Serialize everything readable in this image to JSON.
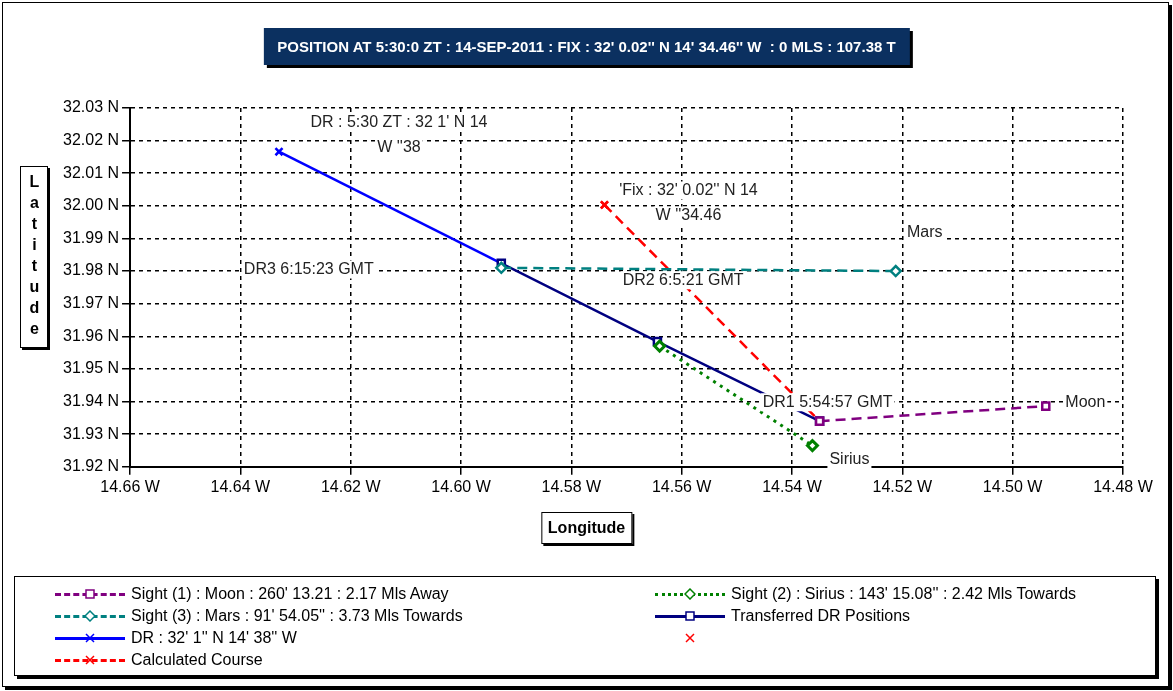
{
  "chart_data": {
    "type": "line",
    "title": "POSITION AT 5:30:0 ZT : 14-SEP-2011 : FIX : 32' 0.02'' N 14' 34.46'' W  : 0 MLS : 107.38 T",
    "xlabel": "Longitude",
    "ylabel": "Latitude",
    "xlim": [
      14.66,
      14.48
    ],
    "xticks": [
      {
        "value": 14.66,
        "label": "14.66 W"
      },
      {
        "value": 14.64,
        "label": "14.64 W"
      },
      {
        "value": 14.62,
        "label": "14.62 W"
      },
      {
        "value": 14.6,
        "label": "14.60 W"
      },
      {
        "value": 14.58,
        "label": "14.58 W"
      },
      {
        "value": 14.56,
        "label": "14.56 W"
      },
      {
        "value": 14.54,
        "label": "14.54 W"
      },
      {
        "value": 14.52,
        "label": "14.52 W"
      },
      {
        "value": 14.5,
        "label": "14.50 W"
      },
      {
        "value": 14.48,
        "label": "14.48 W"
      }
    ],
    "ylim": [
      31.92,
      32.03
    ],
    "yticks": [
      {
        "value": 31.92,
        "label": "31.92 N"
      },
      {
        "value": 31.93,
        "label": "31.93 N"
      },
      {
        "value": 31.94,
        "label": "31.94 N"
      },
      {
        "value": 31.95,
        "label": "31.95 N"
      },
      {
        "value": 31.96,
        "label": "31.96 N"
      },
      {
        "value": 31.97,
        "label": "31.97 N"
      },
      {
        "value": 31.98,
        "label": "31.98 N"
      },
      {
        "value": 31.99,
        "label": "31.99 N"
      },
      {
        "value": 32.0,
        "label": "32.00 N"
      },
      {
        "value": 32.01,
        "label": "32.01 N"
      },
      {
        "value": 32.02,
        "label": "32.02 N"
      },
      {
        "value": 32.03,
        "label": "32.03 N"
      }
    ],
    "grid": true,
    "legend": "bottom",
    "series": [
      {
        "name": "Sight (1) : Moon : 260' 13.21 : 2.17 Mls Away",
        "color": "#800080",
        "line_style": "dashed",
        "marker": "square",
        "x": [
          14.535,
          14.494
        ],
        "values": [
          31.934,
          31.9386
        ]
      },
      {
        "name": "Sight (2) : Sirius : 143' 15.08'' : 2.42 Mls Towards",
        "color": "#008000",
        "line_style": "dotted",
        "marker": "diamond",
        "x": [
          14.564,
          14.5363
        ],
        "values": [
          31.957,
          31.9265
        ]
      },
      {
        "name": "Sight (3) : Mars : 91' 54.05'' : 3.73 Mls Towards",
        "color": "#008080",
        "line_style": "dashed",
        "marker": "diamond",
        "x": [
          14.5927,
          14.5212
        ],
        "values": [
          31.981,
          31.98
        ]
      },
      {
        "name": "Transferred DR Positions",
        "color": "#000080",
        "line_style": "solid",
        "marker": "square",
        "x": [
          14.5927,
          14.5644,
          14.535
        ],
        "values": [
          31.9824,
          31.9584,
          31.934
        ]
      },
      {
        "name": "DR : 32' 1'' N 14' 38'' W",
        "color": "#0000ff",
        "line_style": "solid",
        "marker": "cross",
        "x": [
          14.633,
          14.5927
        ],
        "values": [
          32.0166,
          31.9824
        ]
      },
      {
        "color": "#ff0000",
        "line_style": "none",
        "marker": "cross",
        "x": [
          14.574
        ],
        "values": [
          32.0003
        ]
      },
      {
        "name": "Calculated Course",
        "color": "#ff0000",
        "line_style": "dashed",
        "marker": "cross",
        "x": [
          14.574,
          14.535
        ],
        "values": [
          32.0003,
          31.934
        ]
      }
    ],
    "annotations": [
      {
        "text": "DR : 5:30 ZT : 32 1' N 14\nW ''38",
        "x": 14.633,
        "y": 32.0166
      },
      {
        "text": "'Fix : 32' 0.02'' N 14\nW ''34.46",
        "x": 14.574,
        "y": 32.0003
      },
      {
        "text": "Mars",
        "x": 14.5212,
        "y": 31.98
      },
      "DR3 6:15:23 GMT",
      "DR2 6:5:21 GMT",
      {
        "text": "DR1 5:54:57 GMT",
        "x": 14.535,
        "y": 31.934
      },
      {
        "text": "Moon",
        "x": 14.4939,
        "y": 31.9386
      },
      {
        "text": "Sirius",
        "x": 14.5363,
        "y": 31.9265
      }
    ]
  }
}
